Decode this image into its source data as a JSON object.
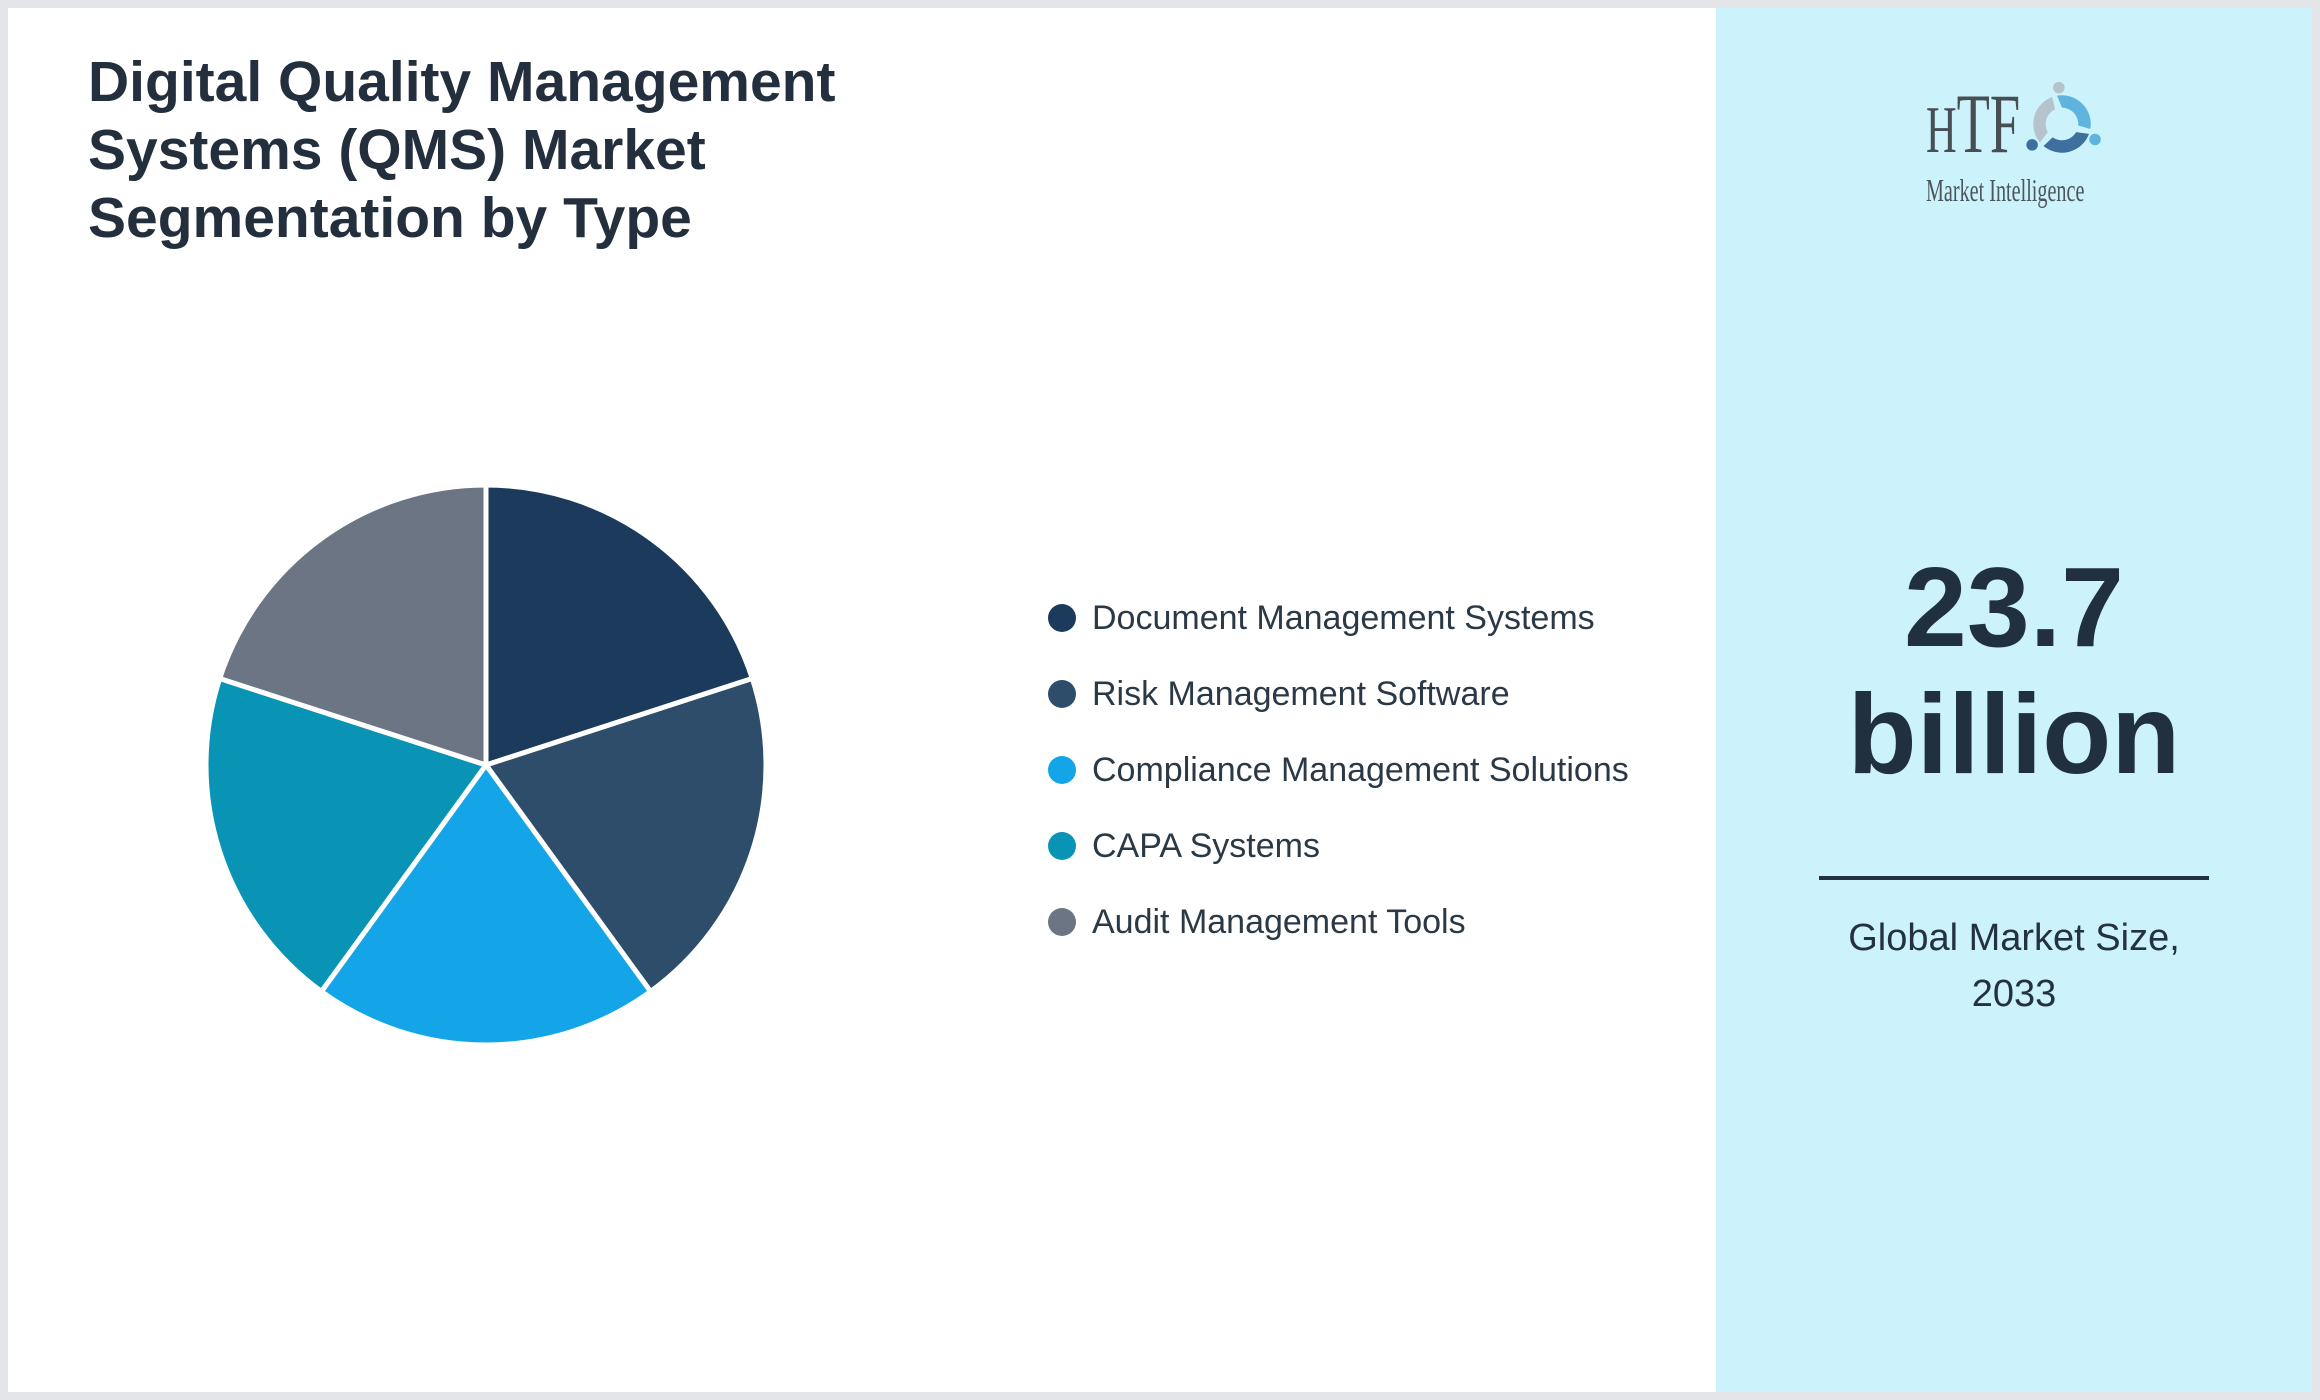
{
  "title": {
    "lines": [
      "Digital Quality Management",
      "Systems (QMS) Market",
      "Segmentation by Type"
    ]
  },
  "logo": {
    "name": "HTF",
    "tagline": "Market Intelligence"
  },
  "chart_data": {
    "type": "pie",
    "title": "Digital Quality Management Systems (QMS) Market Segmentation by Type",
    "segments": [
      {
        "label": "Document Management Systems",
        "value": 20,
        "color": "#1c3a5c"
      },
      {
        "label": "Risk Management Software",
        "value": 20,
        "color": "#2e4d6b"
      },
      {
        "label": "Compliance Management Solutions",
        "value": 20,
        "color": "#14a5e8"
      },
      {
        "label": "CAPA Systems",
        "value": 20,
        "color": "#0993b5"
      },
      {
        "label": "Audit Management Tools",
        "value": 20,
        "color": "#6c7584"
      }
    ],
    "unit": "percent-share-approx",
    "start_angle_deg": 0,
    "direction": "clockwise",
    "slice_border_color": "#ffffff",
    "legend_position": "right-of-chart"
  },
  "market_size": {
    "value": "23.7",
    "unit": "billion",
    "caption": "Global Market Size, 2033"
  },
  "colors": {
    "page_bg": "#ffffff",
    "frame_border": "#e3e5e9",
    "panel_bg": "#ccf2fb",
    "title_text": "#242f3e",
    "legend_text": "#2b3947",
    "stat_text": "#20303f",
    "divider": "#243140",
    "logo_text": "#474f55",
    "logo_light_blue": "#5fb3df",
    "logo_steel_blue": "#3e6f9f",
    "logo_gray": "#b7c3cc"
  }
}
